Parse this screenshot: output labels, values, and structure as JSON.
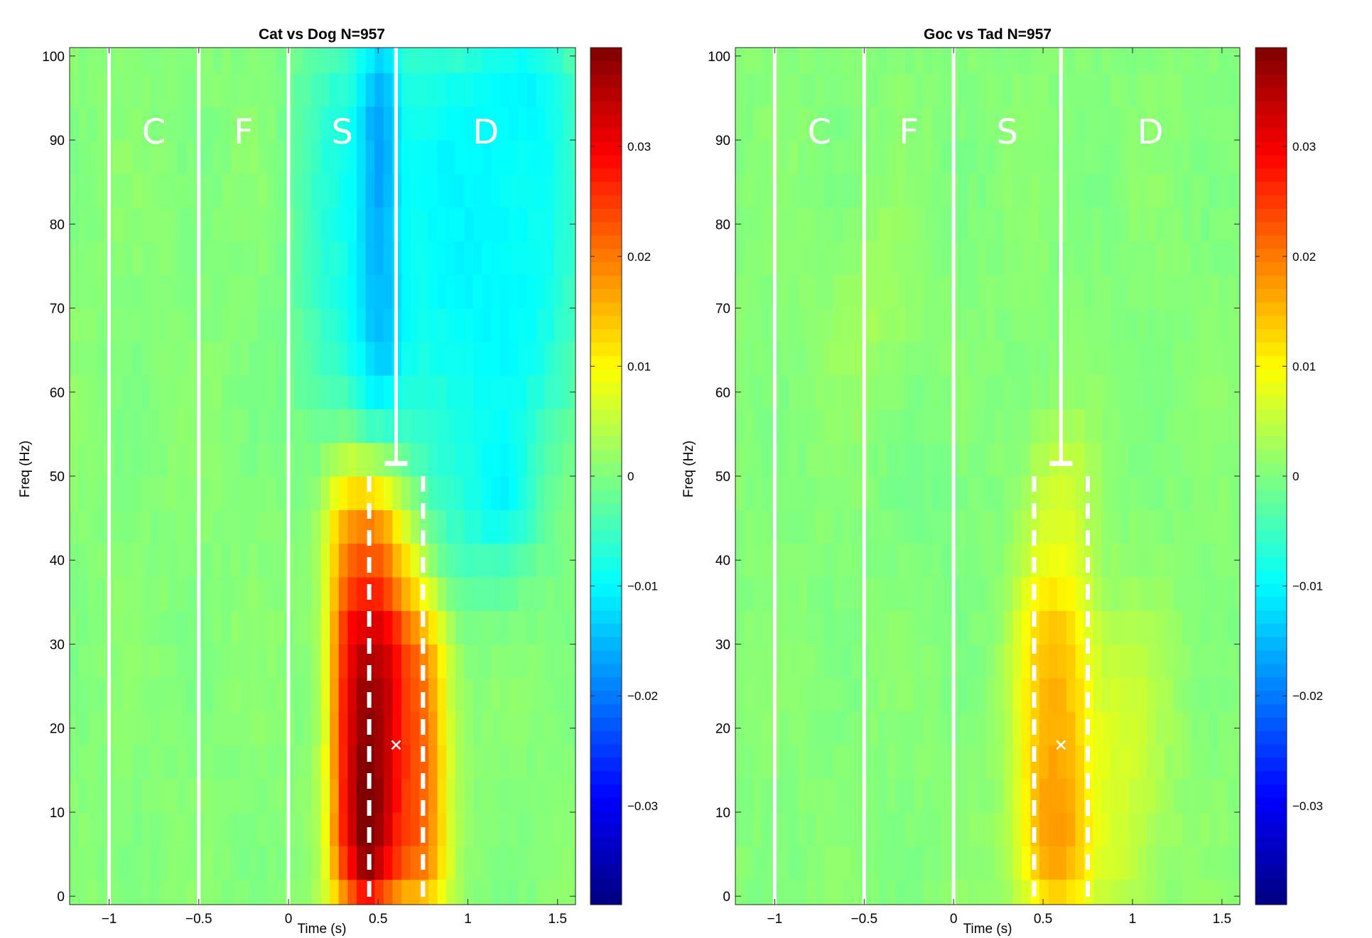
{
  "chart_data": [
    {
      "type": "heatmap",
      "title": "Cat vs Dog N=957",
      "xlabel": "Time (s)",
      "ylabel": "Freq (Hz)",
      "xlim": [
        -1.22,
        1.6
      ],
      "ylim": [
        -1,
        101
      ],
      "xticks": [
        -1,
        -0.5,
        0,
        0.5,
        1,
        1.5
      ],
      "xtick_labels": [
        "−1",
        "−0.5",
        "0",
        "0.5",
        "1",
        "1.5"
      ],
      "yticks": [
        0,
        10,
        20,
        30,
        40,
        50,
        60,
        70,
        80,
        90,
        100
      ],
      "ytick_labels": [
        "0",
        "10",
        "20",
        "30",
        "40",
        "50",
        "60",
        "70",
        "80",
        "90",
        "100"
      ],
      "colorbar": {
        "colormap": "jet",
        "clim": [
          -0.039,
          0.039
        ],
        "ticks": [
          -0.03,
          -0.02,
          -0.01,
          0,
          0.01,
          0.02,
          0.03
        ],
        "tick_labels": [
          "−0.03",
          "−0.02",
          "−0.01",
          "0",
          "0.01",
          "0.02",
          "0.03"
        ]
      },
      "phase_labels": [
        {
          "text": "C",
          "x": -0.75,
          "y": 91
        },
        {
          "text": "F",
          "x": -0.25,
          "y": 91
        },
        {
          "text": "S",
          "x": 0.3,
          "y": 91
        },
        {
          "text": "D",
          "x": 1.1,
          "y": 91
        }
      ],
      "event_lines": [
        -1,
        -0.5,
        0,
        0.6
      ],
      "dashed_lines": [
        0.45,
        0.75
      ],
      "marker": {
        "x": 0.6,
        "y": 18,
        "symbol": "x"
      },
      "top_marker_freq": 51.5,
      "blobs": [
        {
          "t0": 0.25,
          "t1": 0.6,
          "f0": -2,
          "f1": 50,
          "v": 0.031,
          "st": 0.04,
          "sf": 3,
          "cap": 0.031
        },
        {
          "t0": 0.37,
          "t1": 0.5,
          "f0": -2,
          "f1": 30,
          "v": 0.01,
          "st": 0.04,
          "sf": 5
        },
        {
          "t0": 0.4,
          "t1": 0.48,
          "f0": -2,
          "f1": 12,
          "v": 0.01,
          "st": 0.03,
          "sf": 3
        },
        {
          "t0": 0.27,
          "t1": 0.6,
          "f0": 34,
          "f1": 50,
          "v": -0.008,
          "st": 0.03,
          "sf": 2
        },
        {
          "t0": 0.6,
          "t1": 0.85,
          "f0": -2,
          "f1": 34,
          "v": 0.025,
          "st": 0.05,
          "sf": 3
        },
        {
          "t0": 0.6,
          "t1": 0.75,
          "f0": 34,
          "f1": 44,
          "v": 0.012,
          "st": 0.05,
          "sf": 3
        },
        {
          "t0": 0.4,
          "t1": 0.6,
          "f0": 56,
          "f1": 103,
          "v": -0.014,
          "st": 0.05,
          "sf": 4
        },
        {
          "t0": 0.6,
          "t1": 1.6,
          "f0": 56,
          "f1": 103,
          "v": -0.011,
          "st": 0.1,
          "sf": 5
        },
        {
          "t0": 0.1,
          "t1": 0.4,
          "f0": 56,
          "f1": 103,
          "v": -0.009,
          "st": 0.08,
          "sf": 5
        },
        {
          "t0": 0.75,
          "t1": 1.3,
          "f0": 38,
          "f1": 56,
          "v": -0.008,
          "st": 0.1,
          "sf": 4
        },
        {
          "t0": 1.1,
          "t1": 1.35,
          "f0": 44,
          "f1": 50,
          "v": -0.009,
          "st": 0.05,
          "sf": 3
        },
        {
          "t0": 0.47,
          "t1": 0.55,
          "f0": 82,
          "f1": 103,
          "v": -0.006,
          "st": 0.03,
          "sf": 3
        },
        {
          "t0": 1.1,
          "t1": 1.5,
          "f0": 93,
          "f1": 103,
          "v": -0.004,
          "st": 0.05,
          "sf": 3
        }
      ]
    },
    {
      "type": "heatmap",
      "title": "Goc vs Tad N=957",
      "xlabel": "Time (s)",
      "ylabel": "Freq (Hz)",
      "xlim": [
        -1.22,
        1.6
      ],
      "ylim": [
        -1,
        101
      ],
      "xticks": [
        -1,
        -0.5,
        0,
        0.5,
        1,
        1.5
      ],
      "xtick_labels": [
        "−1",
        "−0.5",
        "0",
        "0.5",
        "1",
        "1.5"
      ],
      "yticks": [
        0,
        10,
        20,
        30,
        40,
        50,
        60,
        70,
        80,
        90,
        100
      ],
      "ytick_labels": [
        "0",
        "10",
        "20",
        "30",
        "40",
        "50",
        "60",
        "70",
        "80",
        "90",
        "100"
      ],
      "colorbar": {
        "colormap": "jet",
        "clim": [
          -0.039,
          0.039
        ],
        "ticks": [
          -0.03,
          -0.02,
          -0.01,
          0,
          0.01,
          0.02,
          0.03
        ],
        "tick_labels": [
          "−0.03",
          "−0.02",
          "−0.01",
          "0",
          "0.01",
          "0.02",
          "0.03"
        ]
      },
      "phase_labels": [
        {
          "text": "C",
          "x": -0.75,
          "y": 91
        },
        {
          "text": "F",
          "x": -0.25,
          "y": 91
        },
        {
          "text": "S",
          "x": 0.3,
          "y": 91
        },
        {
          "text": "D",
          "x": 1.1,
          "y": 91
        }
      ],
      "event_lines": [
        -1,
        -0.5,
        0,
        0.6
      ],
      "dashed_lines": [
        0.45,
        0.75
      ],
      "marker": {
        "x": 0.6,
        "y": 18,
        "symbol": "x"
      },
      "top_marker_freq": 51.5,
      "blobs": [
        {
          "t0": 0.38,
          "t1": 0.72,
          "f0": -2,
          "f1": 36,
          "v": 0.016,
          "st": 0.06,
          "sf": 3
        },
        {
          "t0": 0.42,
          "t1": 0.7,
          "f0": -2,
          "f1": 12,
          "v": 0.004,
          "st": 0.04,
          "sf": 4
        },
        {
          "t0": 0.42,
          "t1": 0.75,
          "f0": 36,
          "f1": 54,
          "v": 0.007,
          "st": 0.05,
          "sf": 3
        },
        {
          "t0": 0.75,
          "t1": 1.1,
          "f0": -2,
          "f1": 32,
          "v": 0.008,
          "st": 0.1,
          "sf": 4
        },
        {
          "t0": -0.6,
          "t1": -0.3,
          "f0": 62,
          "f1": 78,
          "v": 0.004,
          "st": 0.1,
          "sf": 4
        },
        {
          "t0": -0.3,
          "t1": 0.1,
          "f0": 40,
          "f1": 56,
          "v": -0.002,
          "st": 0.1,
          "sf": 5
        }
      ]
    }
  ]
}
